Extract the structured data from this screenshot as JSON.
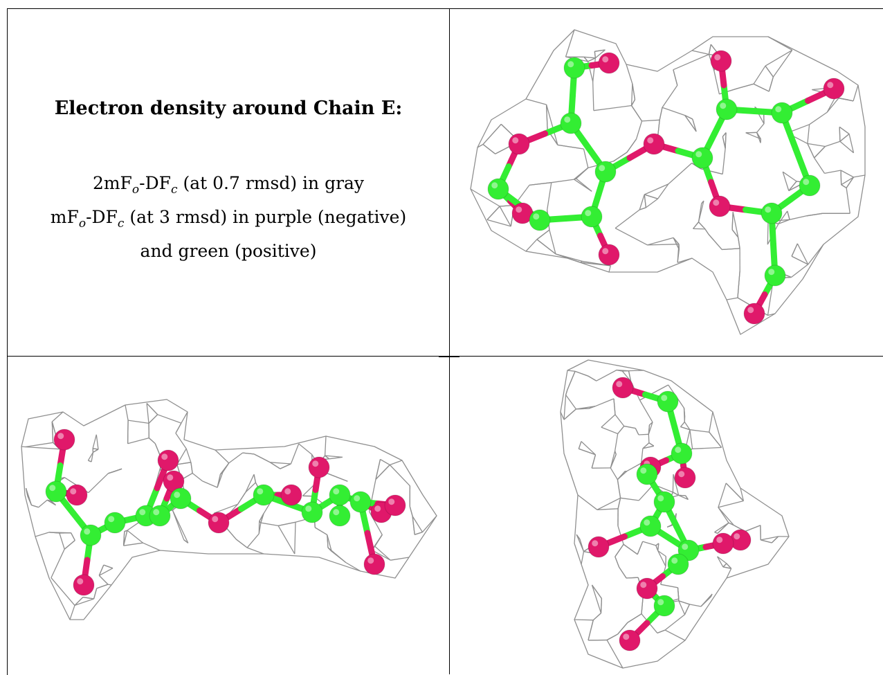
{
  "panel_text": {
    "title": "Electron density around Chain E:",
    "line1": {
      "prefix": "2mF",
      "sub1": "o",
      "mid": "-DF",
      "sub2": "c",
      "suffix": " (at 0.7 rmsd) in gray"
    },
    "line2": {
      "prefix": "mF",
      "sub1": "o",
      "mid": "-DF",
      "sub2": "c",
      "suffix": " (at 3 rmsd) in purple (negative)"
    },
    "line3": "and green (positive)"
  },
  "colors": {
    "mesh": "#8f8f8f",
    "carbon": "#33ee33",
    "oxygen": "#e0186a",
    "border": "#000000"
  }
}
